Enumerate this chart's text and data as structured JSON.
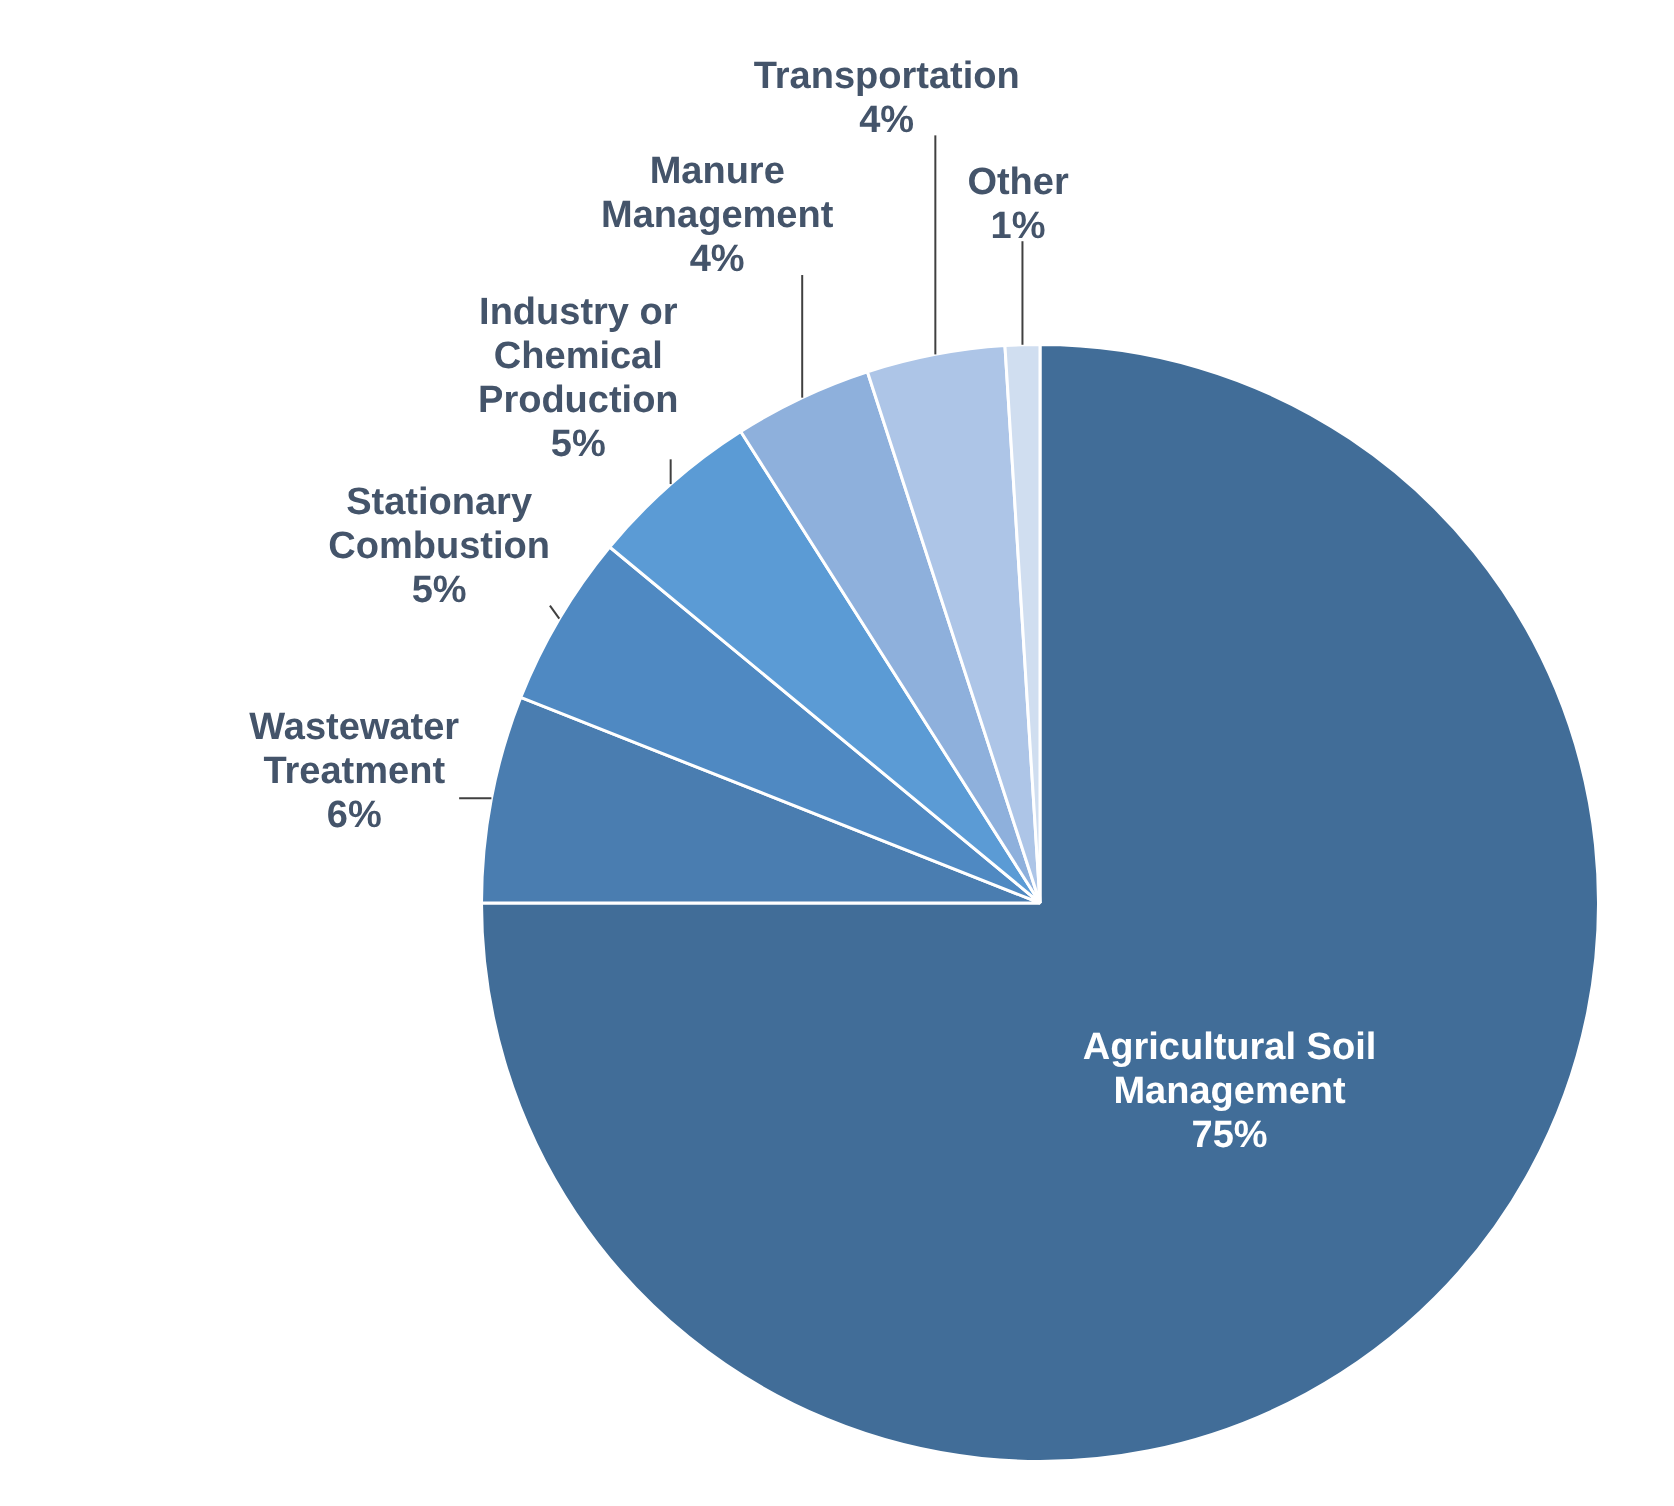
{
  "chart_data": {
    "type": "pie",
    "categories": [
      "Agricultural Soil Management",
      "Wastewater Treatment",
      "Stationary Combustion",
      "Industry or Chemical Production",
      "Manure Management",
      "Transportation",
      "Other"
    ],
    "values": [
      75,
      6,
      5,
      5,
      4,
      4,
      1
    ],
    "value_labels": [
      "75%",
      "6%",
      "5%",
      "5%",
      "4%",
      "4%",
      "1%"
    ],
    "colors": [
      "#416d98",
      "#4a7db0",
      "#4f89c2",
      "#5b9bd5",
      "#8eb0dc",
      "#adc5e7",
      "#d0def0"
    ],
    "legend": false
  }
}
